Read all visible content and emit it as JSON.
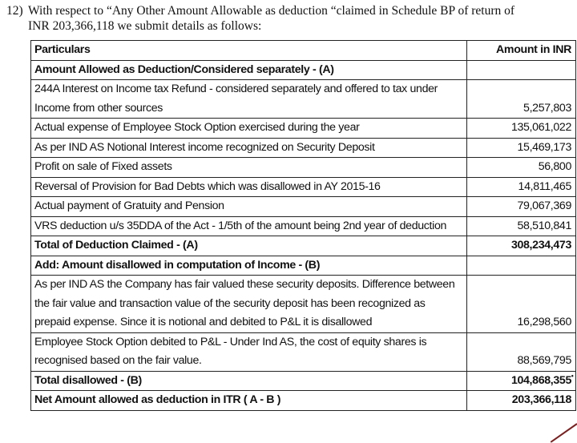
{
  "intro": {
    "number": "12)",
    "line1": "With respect to “Any Other Amount Allowable as deduction “claimed in Schedule BP of return of",
    "line2": "INR 203,366,118 we submit details as follows:"
  },
  "table": {
    "headers": [
      "Particulars",
      "Amount in INR"
    ],
    "rows": [
      {
        "particular": "Amount Allowed as Deduction/Considered separately - (A)",
        "amount": "",
        "bold": true
      },
      {
        "particular": "244A Interest on Income tax Refund - considered separately and offered to tax under Income from other sources",
        "amount": "5,257,803"
      },
      {
        "particular": "Actual expense of Employee Stock Option exercised during the year",
        "amount": "135,061,022"
      },
      {
        "particular": "As per IND AS Notional Interest income recognized on Security Deposit",
        "amount": "15,469,173"
      },
      {
        "particular": "Profit on sale of Fixed assets",
        "amount": "56,800"
      },
      {
        "particular": "Reversal of Provision for Bad Debts which was disallowed in AY 2015-16",
        "amount": "14,811,465"
      },
      {
        "particular": "Actual payment of Gratuity and Pension",
        "amount": "79,067,369"
      },
      {
        "particular": "VRS deduction u/s 35DDA of the Act - 1/5th of the amount being 2nd year of deduction",
        "amount": "58,510,841"
      },
      {
        "particular": "Total of Deduction Claimed - (A)",
        "amount": "308,234,473",
        "bold": true
      },
      {
        "particular": "Add: Amount disallowed in computation of Income - (B)",
        "amount": "",
        "bold": true
      },
      {
        "particular": "As per IND AS the Company has fair valued these security deposits. Difference between the fair value and transaction value of the security deposit has been recognized as prepaid expense. Since it is notional and debited to P&L it is disallowed",
        "amount": "16,298,560"
      },
      {
        "particular": "Employee Stock Option debited to P&L - Under Ind AS, the cost of equity shares is recognised based on the fair value.",
        "amount": "88,569,795"
      },
      {
        "particular": "Total disallowed - (B)",
        "amount": "104,868,355",
        "bold": true
      },
      {
        "particular": "Net Amount allowed as deduction in ITR ( A - B )",
        "amount": "203,366,118",
        "bold": true
      }
    ]
  }
}
